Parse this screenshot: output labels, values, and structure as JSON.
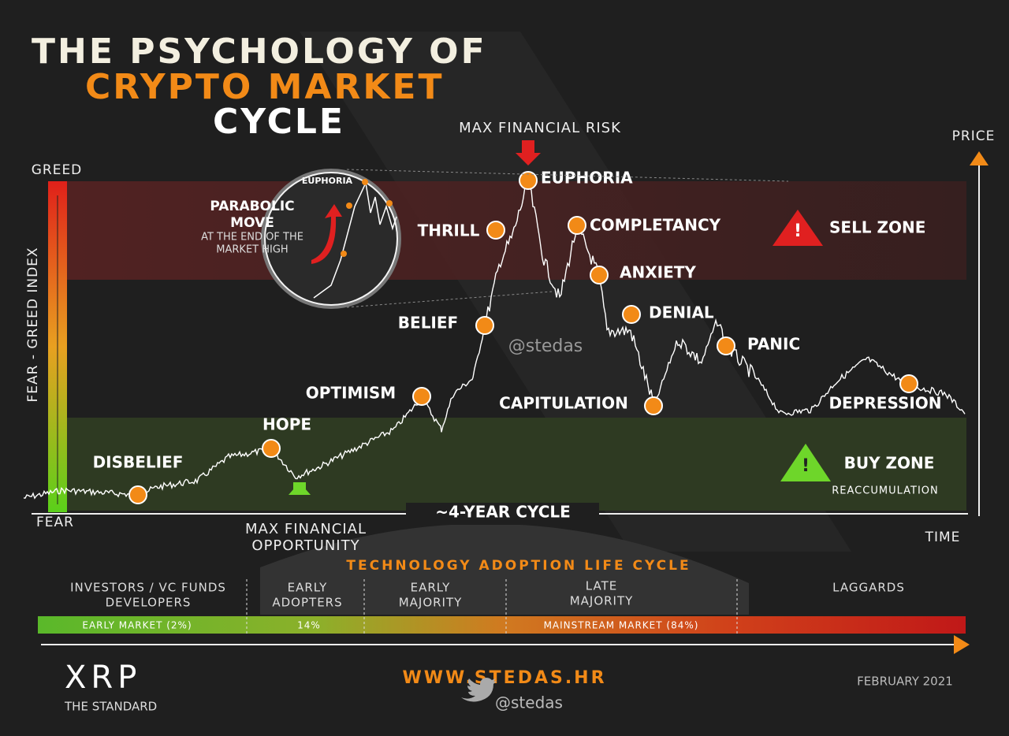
{
  "title": [
    "THE PSYCHOLOGY OF",
    "CRYPTO MARKET",
    "CYCLE"
  ],
  "max_risk": "MAX FINANCIAL RISK",
  "price_axis": "PRICE",
  "time_axis": "TIME",
  "index": {
    "top": "GREED",
    "label": "FEAR - GREED INDEX",
    "bottom": "FEAR"
  },
  "stages": [
    "DISBELIEF",
    "HOPE",
    "OPTIMISM",
    "BELIEF",
    "THRILL",
    "EUPHORIA",
    "COMPLETANCY",
    "ANXIETY",
    "DENIAL",
    "PANIC",
    "CAPITULATION",
    "DEPRESSION"
  ],
  "inset": {
    "label": "EUPHORIA",
    "title": [
      "PARABOLIC",
      "MOVE"
    ],
    "text": [
      "AT THE END OF THE",
      "MARKET HIGH"
    ]
  },
  "sell_zone": "SELL ZONE",
  "buy_zone": {
    "title": "BUY ZONE",
    "subtitle": "REACCUMULATION"
  },
  "watermark": "@stedas",
  "max_opportunity": [
    "MAX FINANCIAL",
    "OPPORTUNITY"
  ],
  "cycle": "~4-YEAR CYCLE",
  "adoption": {
    "title": "TECHNOLOGY ADOPTION LIFE CYCLE",
    "groups": [
      [
        "INVESTORS / VC FUNDS",
        "DEVELOPERS"
      ],
      [
        "EARLY",
        "ADOPTERS"
      ],
      [
        "EARLY",
        "MAJORITY"
      ],
      [
        "LATE",
        "MAJORITY"
      ],
      [
        "LAGGARDS"
      ]
    ],
    "bar": [
      "EARLY MARKET (2%)",
      "14%",
      "MAINSTREAM MARKET (84%)"
    ]
  },
  "footer": {
    "brand": "XRP",
    "tagline": "THE STANDARD",
    "url": "WWW.STEDAS.HR",
    "handle": "@stedas",
    "date": "FEBRUARY 2021"
  }
}
